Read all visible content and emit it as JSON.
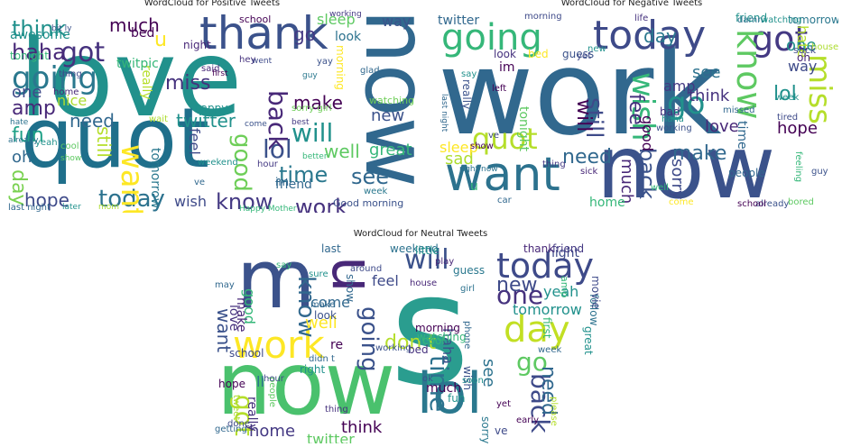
{
  "figure": {
    "panels": [
      {
        "title": "WordCloud for Positive Tweets",
        "words": [
          {
            "t": "love",
            "c": "#21918c"
          },
          {
            "t": "quot",
            "c": "#1f6f8b"
          },
          {
            "t": "now",
            "c": "#31688e"
          },
          {
            "t": "thank",
            "c": "#3b528b"
          },
          {
            "t": "going",
            "c": "#2a788e"
          },
          {
            "t": "got",
            "c": "#46327e"
          },
          {
            "t": "think",
            "c": "#21918c"
          },
          {
            "t": "haha",
            "c": "#482878"
          },
          {
            "t": "day",
            "c": "#7ad151"
          },
          {
            "t": "today",
            "c": "#2c728e"
          },
          {
            "t": "hope",
            "c": "#3e4a89"
          },
          {
            "t": "work",
            "c": "#46327e"
          },
          {
            "t": "know",
            "c": "#443983"
          },
          {
            "t": "good",
            "c": "#6ece58"
          },
          {
            "t": "lol",
            "c": "#3b528b"
          },
          {
            "t": "want",
            "c": "#fde725"
          },
          {
            "t": "see",
            "c": "#31688e"
          },
          {
            "t": "time",
            "c": "#2a788e"
          },
          {
            "t": "back",
            "c": "#482878"
          },
          {
            "t": "will",
            "c": "#21918c"
          },
          {
            "t": "well",
            "c": "#5ec962"
          },
          {
            "t": "make",
            "c": "#440154"
          },
          {
            "t": "new",
            "c": "#3b528b"
          },
          {
            "t": "great",
            "c": "#35b779"
          },
          {
            "t": "twitter",
            "c": "#21918c"
          },
          {
            "t": "need",
            "c": "#31688e"
          },
          {
            "t": "fun",
            "c": "#1fa187"
          },
          {
            "t": "amp",
            "c": "#482878"
          },
          {
            "t": "one",
            "c": "#3e4a89"
          },
          {
            "t": "much",
            "c": "#440154"
          },
          {
            "t": "sleep",
            "c": "#5ec962"
          },
          {
            "t": "go",
            "c": "#443983"
          },
          {
            "t": "miss",
            "c": "#46327e"
          },
          {
            "t": "still",
            "c": "#b5de2b"
          },
          {
            "t": "wish",
            "c": "#3e4a89"
          },
          {
            "t": "friend",
            "c": "#31688e"
          },
          {
            "t": "way",
            "c": "#3b528b"
          },
          {
            "t": "look",
            "c": "#2c728e"
          },
          {
            "t": "nice",
            "c": "#addc30"
          },
          {
            "t": "oh",
            "c": "#31688e"
          },
          {
            "t": "feel",
            "c": "#3e4a89"
          },
          {
            "t": "tonight",
            "c": "#35b779"
          },
          {
            "t": "awesome",
            "c": "#21918c"
          },
          {
            "t": "night",
            "c": "#482878"
          },
          {
            "t": "bed",
            "c": "#440154"
          },
          {
            "t": "tomorrow",
            "c": "#2a788e"
          },
          {
            "t": "Good morning",
            "c": "#3b528b"
          },
          {
            "t": "Happy Mother",
            "c": "#35b779"
          },
          {
            "t": "last night",
            "c": "#31688e"
          },
          {
            "t": "watching",
            "c": "#6ece58"
          },
          {
            "t": "hour",
            "c": "#443983"
          },
          {
            "t": "school",
            "c": "#440154"
          },
          {
            "t": "yay",
            "c": "#3b528b"
          },
          {
            "t": "happy",
            "c": "#21918c"
          },
          {
            "t": "morning",
            "c": "#fde725"
          },
          {
            "t": "u",
            "c": "#fde725"
          },
          {
            "t": "im",
            "c": "#31688e"
          },
          {
            "t": "really",
            "c": "#b5de2b"
          },
          {
            "t": "twitpic",
            "c": "#35b779"
          },
          {
            "t": "hate",
            "c": "#2c728e"
          },
          {
            "t": "cool",
            "c": "#5ec962"
          },
          {
            "t": "yeah",
            "c": "#21918c"
          },
          {
            "t": "home",
            "c": "#482878"
          },
          {
            "t": "thing",
            "c": "#3e4a89"
          },
          {
            "t": "week",
            "c": "#2a788e"
          },
          {
            "t": "best",
            "c": "#443983"
          },
          {
            "t": "glad",
            "c": "#31688e"
          },
          {
            "t": "wait",
            "c": "#addc30"
          },
          {
            "t": "said",
            "c": "#482878"
          },
          {
            "t": "bit ly",
            "c": "#3b528b"
          },
          {
            "t": "sorry girl",
            "c": "#6ece58"
          },
          {
            "t": "ve",
            "c": "#31688e"
          },
          {
            "t": "weekend",
            "c": "#21918c"
          },
          {
            "t": "already",
            "c": "#2c728e"
          },
          {
            "t": "hey",
            "c": "#46327e"
          },
          {
            "t": "went",
            "c": "#3e4a89"
          },
          {
            "t": "guy",
            "c": "#2a788e"
          },
          {
            "t": "better",
            "c": "#35b779"
          },
          {
            "t": "mom",
            "c": "#addc30"
          },
          {
            "t": "later",
            "c": "#21918c"
          },
          {
            "t": "first",
            "c": "#440154"
          },
          {
            "t": "show",
            "c": "#5ec962"
          },
          {
            "t": "come",
            "c": "#3b528b"
          },
          {
            "t": "working",
            "c": "#443983"
          }
        ]
      },
      {
        "title": "WordCloud for Negative Tweets",
        "words": [
          {
            "t": "work",
            "c": "#31688e"
          },
          {
            "t": "now",
            "c": "#3b528b"
          },
          {
            "t": "want",
            "c": "#2c728e"
          },
          {
            "t": "today",
            "c": "#3e4a89"
          },
          {
            "t": "going",
            "c": "#35b779"
          },
          {
            "t": "got",
            "c": "#443983"
          },
          {
            "t": "know",
            "c": "#5ec962"
          },
          {
            "t": "miss",
            "c": "#b5de2b"
          },
          {
            "t": "go",
            "c": "#21918c"
          },
          {
            "t": "wish",
            "c": "#35b779"
          },
          {
            "t": "quot",
            "c": "#b5de2b"
          },
          {
            "t": "still",
            "c": "#3e4a89"
          },
          {
            "t": "feel",
            "c": "#46327e"
          },
          {
            "t": "day",
            "c": "#2a788e"
          },
          {
            "t": "lol",
            "c": "#21918c"
          },
          {
            "t": "back",
            "c": "#3b528b"
          },
          {
            "t": "much",
            "c": "#482878"
          },
          {
            "t": "need",
            "c": "#31688e"
          },
          {
            "t": "sad",
            "c": "#addc30"
          },
          {
            "t": "hope",
            "c": "#440154"
          },
          {
            "t": "love",
            "c": "#482878"
          },
          {
            "t": "make",
            "c": "#31688e"
          },
          {
            "t": "sorry",
            "c": "#3e4a89"
          },
          {
            "t": "will",
            "c": "#440154"
          },
          {
            "t": "think",
            "c": "#46327e"
          },
          {
            "t": "see",
            "c": "#2c728e"
          },
          {
            "t": "one",
            "c": "#21918c"
          },
          {
            "t": "amp",
            "c": "#443983"
          },
          {
            "t": "good",
            "c": "#440154"
          },
          {
            "t": "time",
            "c": "#31688e"
          },
          {
            "t": "hate",
            "c": "#b5de2b"
          },
          {
            "t": "way",
            "c": "#3e4a89"
          },
          {
            "t": "sleep",
            "c": "#fde725"
          },
          {
            "t": "tonight",
            "c": "#5ec962"
          },
          {
            "t": "really",
            "c": "#3b528b"
          },
          {
            "t": "twitter",
            "c": "#31688e"
          },
          {
            "t": "home",
            "c": "#35b779"
          },
          {
            "t": "friend",
            "c": "#21918c"
          },
          {
            "t": "tomorrow",
            "c": "#2a788e"
          },
          {
            "t": "look",
            "c": "#46327e"
          },
          {
            "t": "bed",
            "c": "#fde725"
          },
          {
            "t": "guess",
            "c": "#3b528b"
          },
          {
            "t": "week",
            "c": "#21918c"
          },
          {
            "t": "oh",
            "c": "#482878"
          },
          {
            "t": "im",
            "c": "#440154"
          },
          {
            "t": "suck",
            "c": "#3e4a89"
          },
          {
            "t": "people",
            "c": "#31688e"
          },
          {
            "t": "feeling",
            "c": "#35b779"
          },
          {
            "t": "thing",
            "c": "#443983"
          },
          {
            "t": "bad",
            "c": "#46327e"
          },
          {
            "t": "morning",
            "c": "#3e4a89"
          },
          {
            "t": "last night",
            "c": "#31688e"
          },
          {
            "t": "right now",
            "c": "#2c728e"
          },
          {
            "t": "already",
            "c": "#3b528b"
          },
          {
            "t": "bored",
            "c": "#5ec962"
          },
          {
            "t": "school",
            "c": "#440154"
          },
          {
            "t": "come",
            "c": "#fde725"
          },
          {
            "t": "haha",
            "c": "#21918c"
          },
          {
            "t": "sick",
            "c": "#482878"
          },
          {
            "t": "tired",
            "c": "#3e4a89"
          },
          {
            "t": "missed",
            "c": "#31688e"
          },
          {
            "t": "guy",
            "c": "#3b528b"
          },
          {
            "t": "life",
            "c": "#46327e"
          },
          {
            "t": "damn",
            "c": "#2c728e"
          },
          {
            "t": "watching",
            "c": "#21918c"
          },
          {
            "t": "left",
            "c": "#440154"
          },
          {
            "t": "well",
            "c": "#35b779"
          },
          {
            "t": "house",
            "c": "#addc30"
          },
          {
            "t": "ve",
            "c": "#3e4a89"
          },
          {
            "t": "say",
            "c": "#21918c"
          },
          {
            "t": "car",
            "c": "#31688e"
          },
          {
            "t": "show",
            "c": "#440154"
          },
          {
            "t": "working",
            "c": "#3b528b"
          },
          {
            "t": "yet",
            "c": "#3e4a89"
          },
          {
            "t": "new",
            "c": "#21918c"
          },
          {
            "t": "u",
            "c": "#35b779"
          }
        ]
      },
      {
        "title": "WordCloud for Neutral Tweets",
        "words": [
          {
            "t": "s",
            "c": "#2a9d8f"
          },
          {
            "t": "now",
            "c": "#4ac16d"
          },
          {
            "t": "lol",
            "c": "#2a788e"
          },
          {
            "t": "m",
            "c": "#3b528b"
          },
          {
            "t": "u",
            "c": "#482878"
          },
          {
            "t": "work",
            "c": "#fde725"
          },
          {
            "t": "day",
            "c": "#c2df23"
          },
          {
            "t": "today",
            "c": "#3e4a89"
          },
          {
            "t": "will",
            "c": "#3b528b"
          },
          {
            "t": "one",
            "c": "#46327e"
          },
          {
            "t": "time",
            "c": "#2c728e"
          },
          {
            "t": "back",
            "c": "#3e4a89"
          },
          {
            "t": "got",
            "c": "#b5de2b"
          },
          {
            "t": "going",
            "c": "#3b528b"
          },
          {
            "t": "go",
            "c": "#5ec962"
          },
          {
            "t": "know",
            "c": "#31688e"
          },
          {
            "t": "new",
            "c": "#3e4a89"
          },
          {
            "t": "don t",
            "c": "#b5de2b"
          },
          {
            "t": "need",
            "c": "#31688e"
          },
          {
            "t": "see",
            "c": "#2c728e"
          },
          {
            "t": "want",
            "c": "#3b528b"
          },
          {
            "t": "home",
            "c": "#443983"
          },
          {
            "t": "think",
            "c": "#440154"
          },
          {
            "t": "twitter",
            "c": "#5ec962"
          },
          {
            "t": "tomorrow",
            "c": "#21918c"
          },
          {
            "t": "night",
            "c": "#3e4a89"
          },
          {
            "t": "good",
            "c": "#35b779"
          },
          {
            "t": "love",
            "c": "#46327e"
          },
          {
            "t": "yeah",
            "c": "#21918c"
          },
          {
            "t": "make",
            "c": "#482878"
          },
          {
            "t": "come",
            "c": "#31688e"
          },
          {
            "t": "well",
            "c": "#fde725"
          },
          {
            "t": "ll",
            "c": "#2c728e"
          },
          {
            "t": "feel",
            "c": "#3e4a89"
          },
          {
            "t": "re",
            "c": "#440154"
          },
          {
            "t": "much",
            "c": "#440154"
          },
          {
            "t": "haha",
            "c": "#3b528b"
          },
          {
            "t": "really",
            "c": "#46327e"
          },
          {
            "t": "amp",
            "c": "#35b779"
          },
          {
            "t": "ve",
            "c": "#3e4a89"
          },
          {
            "t": "last",
            "c": "#31688e"
          },
          {
            "t": "weekend",
            "c": "#2c728e"
          },
          {
            "t": "little",
            "c": "#21918c"
          },
          {
            "t": "thank",
            "c": "#482878"
          },
          {
            "t": "friend",
            "c": "#443983"
          },
          {
            "t": "wish",
            "c": "#3b528b"
          },
          {
            "t": "show",
            "c": "#31688e"
          },
          {
            "t": "sorry",
            "c": "#2a788e"
          },
          {
            "t": "watching",
            "c": "#35b779"
          },
          {
            "t": "morning",
            "c": "#440154"
          },
          {
            "t": "phone",
            "c": "#31688e"
          },
          {
            "t": "school",
            "c": "#3e4a89"
          },
          {
            "t": "people",
            "c": "#5ec962"
          },
          {
            "t": "right",
            "c": "#21918c"
          },
          {
            "t": "hope",
            "c": "#440154"
          },
          {
            "t": "look",
            "c": "#3b528b"
          },
          {
            "t": "bed",
            "c": "#46327e"
          },
          {
            "t": "first",
            "c": "#35b779"
          },
          {
            "t": "follow",
            "c": "#2c728e"
          },
          {
            "t": "movie",
            "c": "#3e4a89"
          },
          {
            "t": "great",
            "c": "#21918c"
          },
          {
            "t": "getting",
            "c": "#31688e"
          },
          {
            "t": "working",
            "c": "#3b528b"
          },
          {
            "t": "play",
            "c": "#482878"
          },
          {
            "t": "guess",
            "c": "#2a788e"
          },
          {
            "t": "say",
            "c": "#35b779"
          },
          {
            "t": "fun",
            "c": "#21918c"
          },
          {
            "t": "done",
            "c": "#3e4a89"
          },
          {
            "t": "yet",
            "c": "#440154"
          },
          {
            "t": "may",
            "c": "#31688e"
          },
          {
            "t": "tweet",
            "c": "#addc30"
          },
          {
            "t": "please",
            "c": "#b5de2b"
          },
          {
            "t": "hour",
            "c": "#3e4a89"
          },
          {
            "t": "didn t",
            "c": "#31688e"
          },
          {
            "t": "ok",
            "c": "#3b528b"
          },
          {
            "t": "sure",
            "c": "#21918c"
          },
          {
            "t": "thing",
            "c": "#46327e"
          },
          {
            "t": "make",
            "c": "#31688e"
          },
          {
            "t": "cool",
            "c": "#35b779"
          },
          {
            "t": "early",
            "c": "#440154"
          },
          {
            "t": "around",
            "c": "#3e4a89"
          },
          {
            "t": "girl",
            "c": "#2c728e"
          },
          {
            "t": "soon",
            "c": "#21918c"
          },
          {
            "t": "house",
            "c": "#482878"
          },
          {
            "t": "week",
            "c": "#31688e"
          }
        ]
      }
    ]
  }
}
